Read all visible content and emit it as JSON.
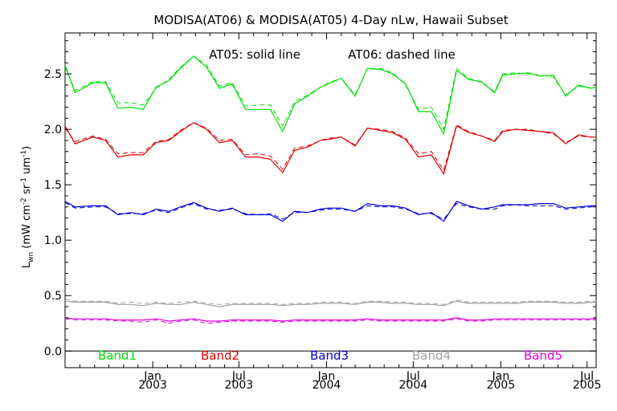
{
  "chart_data": {
    "type": "line",
    "title": "MODISA(AT06) & MODISA(AT05) 4-Day nLw, Hawaii Subset",
    "annotation_solid": "AT05: solid line",
    "annotation_dashed": "AT06: dashed line",
    "ylabel_main": "L",
    "ylabel_sub": "wn",
    "ylabel_units": " (mW cm",
    "ylabel_exp1": "-2",
    "ylabel_mid": " sr",
    "ylabel_exp2": "-1",
    "ylabel_mid2": " um",
    "ylabel_exp3": "-1",
    "ylabel_end": ")",
    "ylim": [
      -0.15,
      2.87
    ],
    "xlim": [
      "2002-07-01",
      "2005-07-20"
    ],
    "yticks": [
      "0.0",
      "0.5",
      "1.0",
      "1.5",
      "2.0",
      "2.5"
    ],
    "xticks": [
      {
        "date": "2003-01-01",
        "month": "Jan",
        "year": "2003"
      },
      {
        "date": "2003-07-01",
        "month": "Jul",
        "year": "2003"
      },
      {
        "date": "2004-01-01",
        "month": "Jan",
        "year": "2004"
      },
      {
        "date": "2004-07-01",
        "month": "Jul",
        "year": "2004"
      },
      {
        "date": "2005-01-01",
        "month": "Jan",
        "year": "2005"
      },
      {
        "date": "2005-07-01",
        "month": "Jul",
        "year": "2005"
      }
    ],
    "grid": false,
    "legend_position": "bottom",
    "x": [
      "2002-07-01",
      "2002-07-22",
      "2002-08-28",
      "2002-09-24",
      "2002-10-20",
      "2002-11-16",
      "2002-12-12",
      "2003-01-08",
      "2003-02-04",
      "2003-02-28",
      "2003-03-28",
      "2003-04-24",
      "2003-05-21",
      "2003-06-17",
      "2003-07-15",
      "2003-08-10",
      "2003-09-05",
      "2003-10-01",
      "2003-10-26",
      "2003-11-22",
      "2003-12-19",
      "2004-01-05",
      "2004-02-01",
      "2004-03-01",
      "2004-03-27",
      "2004-04-23",
      "2004-05-19",
      "2004-06-15",
      "2004-07-12",
      "2004-08-08",
      "2004-09-03",
      "2004-09-30",
      "2004-10-26",
      "2004-11-22",
      "2004-12-19",
      "2005-01-05",
      "2005-02-01",
      "2005-02-27",
      "2005-03-25",
      "2005-04-21",
      "2005-05-17",
      "2005-06-13",
      "2005-07-10",
      "2005-07-20"
    ],
    "series": [
      {
        "name": "Band1",
        "color": "#00e000",
        "at05": [
          2.58,
          2.33,
          2.42,
          2.42,
          2.19,
          2.2,
          2.18,
          2.38,
          2.44,
          2.55,
          2.66,
          2.56,
          2.37,
          2.41,
          2.18,
          2.18,
          2.18,
          1.98,
          2.23,
          2.3,
          2.38,
          2.41,
          2.46,
          2.3,
          2.55,
          2.54,
          2.5,
          2.41,
          2.16,
          2.16,
          1.96,
          2.53,
          2.45,
          2.43,
          2.33,
          2.49,
          2.5,
          2.51,
          2.48,
          2.49,
          2.3,
          2.4,
          2.37,
          2.38
        ],
        "at06": [
          2.56,
          2.35,
          2.43,
          2.43,
          2.24,
          2.24,
          2.22,
          2.37,
          2.45,
          2.56,
          2.66,
          2.58,
          2.39,
          2.42,
          2.21,
          2.22,
          2.22,
          2.03,
          2.25,
          2.31,
          2.38,
          2.42,
          2.46,
          2.31,
          2.55,
          2.55,
          2.51,
          2.4,
          2.18,
          2.2,
          2.0,
          2.55,
          2.46,
          2.42,
          2.34,
          2.5,
          2.51,
          2.5,
          2.49,
          2.47,
          2.31,
          2.39,
          2.37,
          2.38
        ]
      },
      {
        "name": "Band2",
        "color": "#e00000",
        "at05": [
          2.03,
          1.87,
          1.93,
          1.9,
          1.75,
          1.77,
          1.77,
          1.88,
          1.9,
          1.98,
          2.06,
          2.0,
          1.88,
          1.9,
          1.75,
          1.75,
          1.73,
          1.61,
          1.81,
          1.84,
          1.9,
          1.91,
          1.93,
          1.85,
          2.01,
          1.99,
          1.97,
          1.91,
          1.75,
          1.77,
          1.6,
          2.03,
          1.97,
          1.94,
          1.89,
          1.98,
          2.0,
          1.99,
          1.98,
          1.97,
          1.87,
          1.95,
          1.93,
          1.93
        ],
        "at06": [
          2.01,
          1.89,
          1.94,
          1.91,
          1.78,
          1.79,
          1.79,
          1.89,
          1.91,
          1.99,
          2.06,
          2.01,
          1.9,
          1.91,
          1.77,
          1.78,
          1.76,
          1.64,
          1.83,
          1.85,
          1.9,
          1.92,
          1.93,
          1.86,
          2.01,
          2.0,
          1.98,
          1.92,
          1.78,
          1.8,
          1.63,
          2.04,
          1.98,
          1.94,
          1.9,
          1.99,
          2.0,
          2.0,
          1.98,
          1.96,
          1.88,
          1.94,
          1.93,
          1.93
        ]
      },
      {
        "name": "Band3",
        "color": "#0000e0",
        "at05": [
          1.35,
          1.3,
          1.31,
          1.31,
          1.23,
          1.25,
          1.23,
          1.28,
          1.26,
          1.3,
          1.34,
          1.29,
          1.26,
          1.29,
          1.23,
          1.23,
          1.23,
          1.17,
          1.26,
          1.25,
          1.28,
          1.29,
          1.29,
          1.26,
          1.33,
          1.31,
          1.31,
          1.29,
          1.23,
          1.25,
          1.17,
          1.35,
          1.31,
          1.28,
          1.3,
          1.32,
          1.32,
          1.32,
          1.33,
          1.33,
          1.29,
          1.3,
          1.31,
          1.31
        ],
        "at06": [
          1.34,
          1.29,
          1.3,
          1.3,
          1.24,
          1.24,
          1.24,
          1.27,
          1.25,
          1.29,
          1.33,
          1.28,
          1.27,
          1.28,
          1.24,
          1.23,
          1.24,
          1.19,
          1.25,
          1.25,
          1.27,
          1.28,
          1.28,
          1.26,
          1.31,
          1.3,
          1.3,
          1.28,
          1.24,
          1.24,
          1.19,
          1.33,
          1.3,
          1.28,
          1.28,
          1.31,
          1.32,
          1.31,
          1.31,
          1.31,
          1.28,
          1.29,
          1.3,
          1.3
        ]
      },
      {
        "name": "Band4",
        "color": "#a0a0a0",
        "at05": [
          0.45,
          0.44,
          0.44,
          0.44,
          0.42,
          0.42,
          0.41,
          0.43,
          0.42,
          0.42,
          0.44,
          0.42,
          0.4,
          0.42,
          0.42,
          0.42,
          0.42,
          0.41,
          0.42,
          0.42,
          0.43,
          0.43,
          0.43,
          0.42,
          0.44,
          0.44,
          0.43,
          0.43,
          0.42,
          0.42,
          0.41,
          0.45,
          0.43,
          0.43,
          0.43,
          0.43,
          0.43,
          0.44,
          0.44,
          0.44,
          0.43,
          0.43,
          0.44,
          0.44
        ],
        "at06": [
          0.47,
          0.45,
          0.45,
          0.45,
          0.43,
          0.44,
          0.43,
          0.44,
          0.43,
          0.44,
          0.45,
          0.43,
          0.42,
          0.43,
          0.43,
          0.43,
          0.43,
          0.42,
          0.43,
          0.43,
          0.44,
          0.44,
          0.44,
          0.43,
          0.45,
          0.45,
          0.44,
          0.44,
          0.43,
          0.43,
          0.42,
          0.46,
          0.44,
          0.44,
          0.44,
          0.44,
          0.44,
          0.45,
          0.45,
          0.45,
          0.44,
          0.44,
          0.45,
          0.45
        ]
      },
      {
        "name": "Band5",
        "color": "#e000e0",
        "at05": [
          0.3,
          0.29,
          0.29,
          0.29,
          0.28,
          0.28,
          0.28,
          0.29,
          0.27,
          0.28,
          0.29,
          0.27,
          0.27,
          0.28,
          0.28,
          0.28,
          0.28,
          0.27,
          0.28,
          0.28,
          0.28,
          0.28,
          0.28,
          0.28,
          0.29,
          0.28,
          0.28,
          0.28,
          0.28,
          0.28,
          0.28,
          0.3,
          0.28,
          0.28,
          0.29,
          0.29,
          0.29,
          0.29,
          0.29,
          0.29,
          0.29,
          0.29,
          0.29,
          0.29
        ],
        "at06": [
          0.29,
          0.28,
          0.28,
          0.28,
          0.27,
          0.27,
          0.26,
          0.28,
          0.25,
          0.27,
          0.28,
          0.25,
          0.26,
          0.27,
          0.27,
          0.27,
          0.27,
          0.26,
          0.27,
          0.27,
          0.27,
          0.27,
          0.27,
          0.27,
          0.28,
          0.27,
          0.27,
          0.27,
          0.27,
          0.27,
          0.27,
          0.29,
          0.27,
          0.27,
          0.28,
          0.28,
          0.28,
          0.28,
          0.28,
          0.28,
          0.28,
          0.28,
          0.28,
          0.28
        ]
      }
    ]
  }
}
